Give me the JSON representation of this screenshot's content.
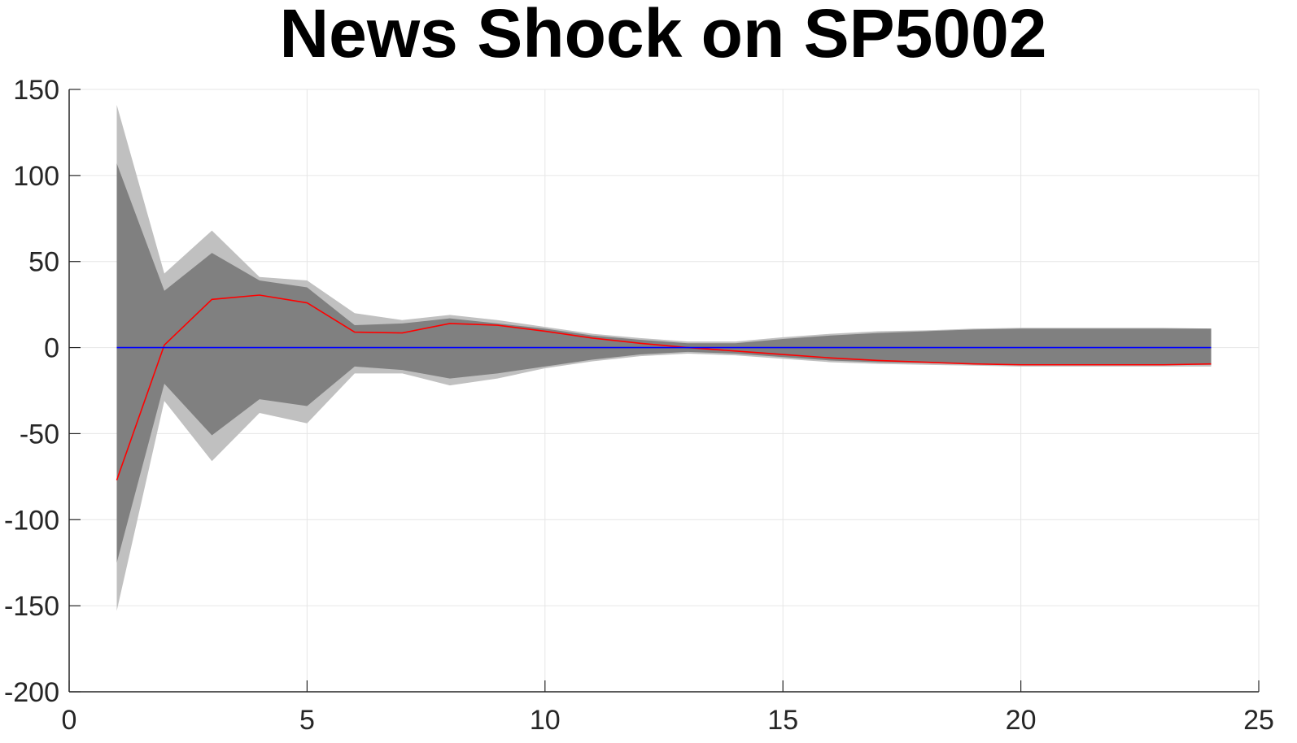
{
  "chart_data": {
    "type": "area",
    "title": "News Shock on SP5002",
    "xlabel": "",
    "ylabel": "",
    "xlim": [
      0,
      25
    ],
    "ylim": [
      -200,
      150
    ],
    "xticks": [
      0,
      5,
      10,
      15,
      20,
      25
    ],
    "xtick_labels": [
      "0",
      "5",
      "10",
      "15",
      "20",
      "25"
    ],
    "yticks": [
      -200,
      -150,
      -100,
      -50,
      0,
      50,
      100,
      150
    ],
    "ytick_labels": [
      "-200",
      "-150",
      "-100",
      "-50",
      "0",
      "50",
      "100",
      "150"
    ],
    "grid": true,
    "legend": "none",
    "x": [
      1,
      2,
      3,
      4,
      5,
      6,
      7,
      8,
      9,
      10,
      11,
      12,
      13,
      14,
      15,
      16,
      17,
      18,
      19,
      20,
      21,
      22,
      23,
      24
    ],
    "series": [
      {
        "kind": "band",
        "color": "#c0c0c0",
        "upper": [
          141,
          43,
          68,
          41,
          39,
          20,
          16,
          19,
          16,
          12,
          8,
          5.5,
          3.5,
          3.5,
          6,
          8,
          9.5,
          10,
          11,
          11.5,
          11.5,
          11.5,
          11.5,
          11
        ],
        "lower": [
          -153,
          -31,
          -66,
          -38,
          -44,
          -15,
          -15,
          -22,
          -18,
          -12,
          -8,
          -5,
          -3.5,
          -4.5,
          -6.5,
          -8.5,
          -9.5,
          -10,
          -10.5,
          -11,
          -11,
          -11,
          -11,
          -11
        ]
      },
      {
        "kind": "band",
        "color": "#808080",
        "upper": [
          107,
          33,
          55,
          39,
          35,
          13,
          14,
          17,
          14,
          11,
          7,
          4.5,
          2.5,
          2.5,
          5,
          7,
          8.5,
          9.5,
          10.5,
          11,
          11,
          11,
          11,
          11
        ],
        "lower": [
          -125,
          -21,
          -51,
          -30,
          -34,
          -11,
          -13,
          -18,
          -15,
          -11,
          -7,
          -4,
          -2.5,
          -3.5,
          -5.5,
          -7.5,
          -8.5,
          -9,
          -9.5,
          -10,
          -10,
          -10,
          -10,
          -10
        ]
      },
      {
        "kind": "line",
        "color": "#ff0000",
        "values": [
          -77,
          1.5,
          28,
          30.5,
          26,
          9,
          8.5,
          14,
          13,
          9.5,
          5.5,
          2.5,
          0,
          -2,
          -4,
          -6,
          -7.5,
          -8.5,
          -9.5,
          -10,
          -10,
          -10,
          -10,
          -9.5
        ]
      },
      {
        "kind": "line",
        "color": "#0000ff",
        "values": [
          0,
          0,
          0,
          0,
          0,
          0,
          0,
          0,
          0,
          0,
          0,
          0,
          0,
          0,
          0,
          0,
          0,
          0,
          0,
          0,
          0,
          0,
          0,
          0
        ]
      }
    ]
  }
}
